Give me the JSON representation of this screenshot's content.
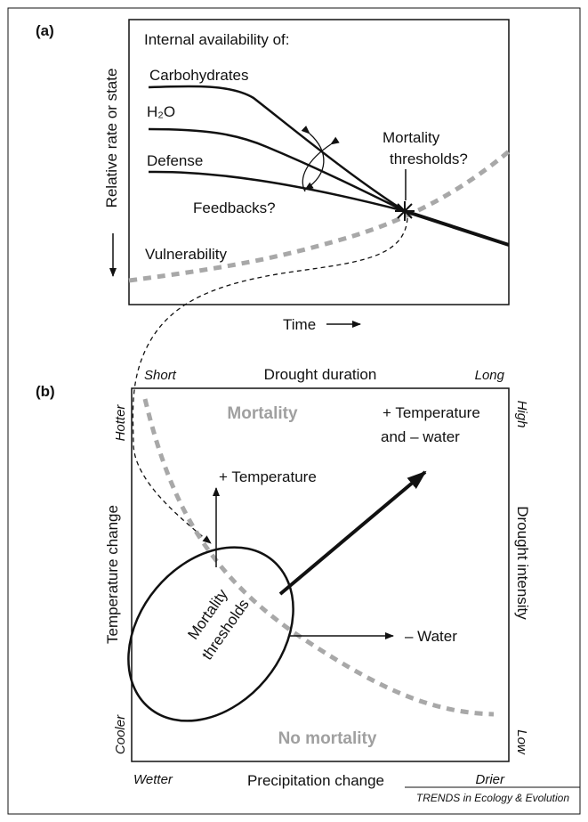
{
  "panel_a": {
    "label": "(a)",
    "heading": "Internal availability of:",
    "curves": [
      "Carbohydrates",
      "H₂O",
      "Defense"
    ],
    "feedbacks": "Feedbacks?",
    "vulnerability": "Vulnerability",
    "mortality_thresholds": [
      "Mortality",
      "thresholds?"
    ],
    "y_axis_label": "Relative rate or state",
    "x_axis_label": "Time"
  },
  "panel_b": {
    "label": "(b)",
    "top_left": "Short",
    "top_axis_label": "Drought duration",
    "top_right": "Long",
    "left_top": "Hotter",
    "left_axis_label": "Temperature change",
    "left_bottom": "Cooler",
    "right_top": "High",
    "right_axis_label": "Drought intensity",
    "right_bottom": "Low",
    "bottom_left": "Wetter",
    "bottom_axis_label": "Precipitation change",
    "bottom_right": "Drier",
    "mortality": "Mortality",
    "no_mortality": "No mortality",
    "temperature_arrow": "+ Temperature",
    "combined_arrow": [
      "+ Temperature",
      "and – water"
    ],
    "water_arrow": "– Water",
    "ellipse_label": [
      "Mortality",
      "thresholds"
    ]
  },
  "source": "TRENDS in Ecology & Evolution"
}
